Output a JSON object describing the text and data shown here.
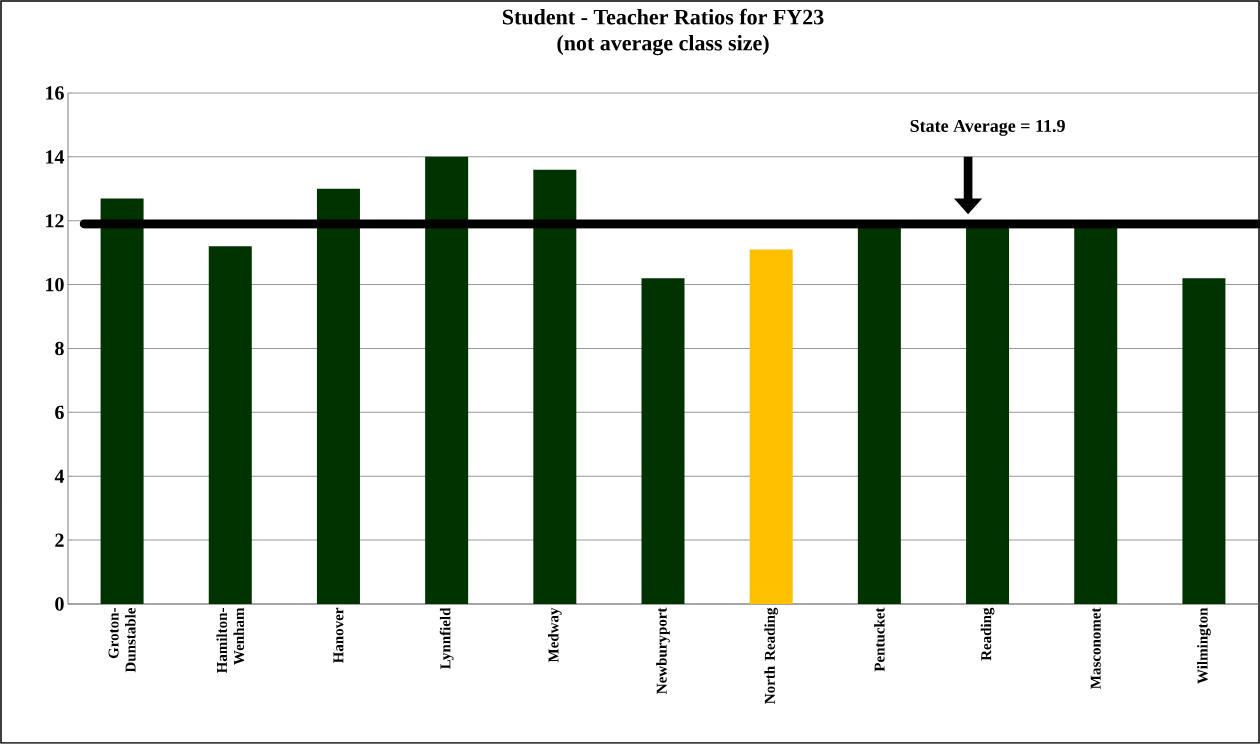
{
  "chart_data": {
    "type": "bar",
    "title": "Student - Teacher Ratios for FY23",
    "subtitle": "(not average class size)",
    "categories": [
      "Groton-Dunstable",
      "Hamilton-Wenham",
      "Hanover",
      "Lynnfield",
      "Medway",
      "Newburyport",
      "North Reading",
      "Pentucket",
      "Reading",
      "Masconomet",
      "Wilmington"
    ],
    "values": [
      12.7,
      11.2,
      13.0,
      14.0,
      13.6,
      10.2,
      11.1,
      11.8,
      11.8,
      11.8,
      10.2
    ],
    "colors": [
      "#003300",
      "#003300",
      "#003300",
      "#003300",
      "#003300",
      "#003300",
      "#ffc000",
      "#003300",
      "#003300",
      "#003300",
      "#003300"
    ],
    "ylim": [
      0,
      16
    ],
    "yticks": [
      0,
      2,
      4,
      6,
      8,
      10,
      12,
      14,
      16
    ],
    "grid": "y",
    "ref_lines": [
      {
        "axis": "y",
        "value": 11.9,
        "label": "State Average = 11.9",
        "color": "#000000"
      }
    ]
  }
}
